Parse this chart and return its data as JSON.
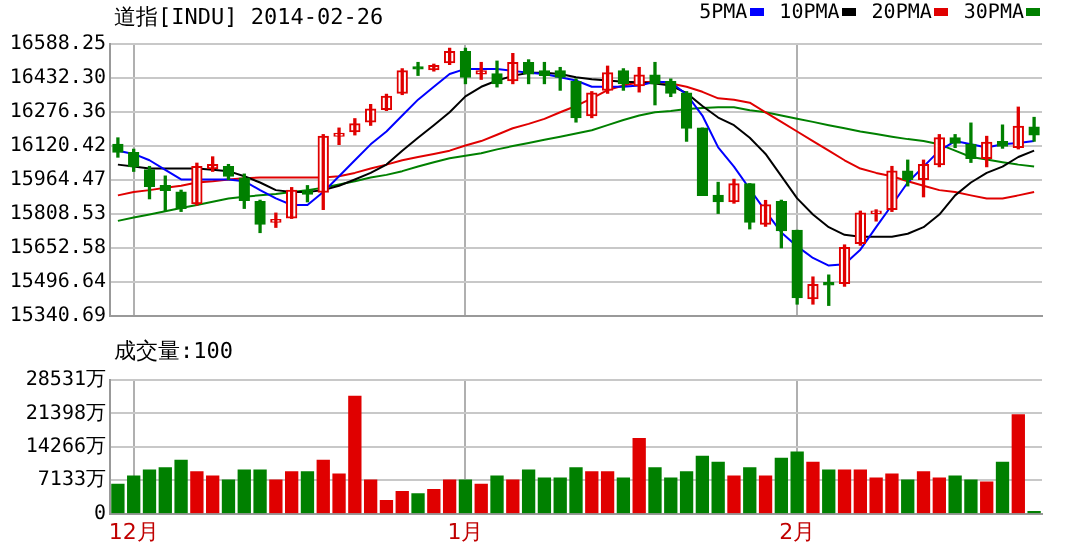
{
  "chart_data": [
    {
      "type": "candlestick",
      "title": "道指[INDU] 2014-02-26",
      "categories": [
        null,
        null,
        null,
        null,
        null,
        null,
        null,
        null,
        null,
        null,
        null,
        null,
        null,
        null,
        null,
        null,
        null,
        null,
        null,
        null,
        null,
        null,
        null,
        null,
        null,
        null,
        null,
        null,
        null,
        null,
        null,
        null,
        null,
        null,
        null,
        null,
        null,
        null,
        null,
        null,
        null,
        null,
        null,
        null,
        null,
        null,
        null,
        null,
        null,
        null,
        null,
        null,
        null,
        null,
        null,
        null,
        null,
        null,
        null
      ],
      "ohlc": [
        [
          16128,
          16157,
          16070,
          16093
        ],
        [
          16090,
          16105,
          16005,
          16026
        ],
        [
          16011,
          16026,
          15879,
          15935
        ],
        [
          15938,
          15982,
          15821,
          15917
        ],
        [
          15909,
          15917,
          15821,
          15835
        ],
        [
          15856,
          16041,
          15850,
          16026
        ],
        [
          16017,
          16070,
          16005,
          16035
        ],
        [
          16026,
          16035,
          15967,
          15982
        ],
        [
          15973,
          15991,
          15835,
          15871
        ],
        [
          15865,
          15871,
          15724,
          15762
        ],
        [
          15771,
          15812,
          15748,
          15783
        ],
        [
          15791,
          15929,
          15789,
          15917
        ],
        [
          15917,
          15938,
          15865,
          15900
        ],
        [
          15909,
          16172,
          15830,
          16164
        ],
        [
          16166,
          16202,
          16128,
          16178
        ],
        [
          16187,
          16245,
          16172,
          16222
        ],
        [
          16231,
          16310,
          16216,
          16289
        ],
        [
          16289,
          16357,
          16284,
          16348
        ],
        [
          16363,
          16474,
          16357,
          16465
        ],
        [
          16480,
          16503,
          16445,
          16474
        ],
        [
          16471,
          16495,
          16465,
          16489
        ],
        [
          16503,
          16568,
          16495,
          16553
        ],
        [
          16553,
          16568,
          16407,
          16436
        ],
        [
          16451,
          16503,
          16427,
          16465
        ],
        [
          16451,
          16509,
          16392,
          16407
        ],
        [
          16421,
          16544,
          16407,
          16503
        ],
        [
          16503,
          16515,
          16407,
          16451
        ],
        [
          16465,
          16503,
          16407,
          16445
        ],
        [
          16465,
          16480,
          16377,
          16436
        ],
        [
          16415,
          16427,
          16231,
          16251
        ],
        [
          16260,
          16369,
          16251,
          16363
        ],
        [
          16377,
          16486,
          16363,
          16456
        ],
        [
          16465,
          16474,
          16377,
          16407
        ],
        [
          16398,
          16480,
          16369,
          16445
        ],
        [
          16445,
          16503,
          16310,
          16407
        ],
        [
          16415,
          16427,
          16348,
          16363
        ],
        [
          16363,
          16369,
          16143,
          16202
        ],
        [
          16202,
          16202,
          15894,
          15894
        ],
        [
          15894,
          15953,
          15812,
          15865
        ],
        [
          15865,
          15967,
          15859,
          15947
        ],
        [
          15947,
          15947,
          15741,
          15771
        ],
        [
          15762,
          15870,
          15753,
          15850
        ],
        [
          15865,
          15871,
          15654,
          15733
        ],
        [
          15733,
          15733,
          15396,
          15425
        ],
        [
          15420,
          15519,
          15396,
          15484
        ],
        [
          15490,
          15528,
          15390,
          15484
        ],
        [
          15490,
          15666,
          15478,
          15654
        ],
        [
          15674,
          15821,
          15666,
          15812
        ],
        [
          15812,
          15827,
          15777,
          15821
        ],
        [
          15830,
          16026,
          15821,
          16005
        ],
        [
          16005,
          16055,
          15938,
          15967
        ],
        [
          15967,
          16055,
          15888,
          16035
        ],
        [
          16035,
          16172,
          16026,
          16158
        ],
        [
          16158,
          16172,
          16114,
          16134
        ],
        [
          16128,
          16225,
          16046,
          16064
        ],
        [
          16064,
          16164,
          16026,
          16137
        ],
        [
          16140,
          16216,
          16111,
          16120
        ],
        [
          16114,
          16298,
          16108,
          16210
        ],
        [
          16207,
          16251,
          16143,
          16172
        ]
      ],
      "colors": [
        "#008000",
        "#008000",
        "#008000",
        "#008000",
        "#008000",
        "#e00000",
        "#e00000",
        "#008000",
        "#008000",
        "#008000",
        "#e00000",
        "#e00000",
        "#008000",
        "#e00000",
        "#e00000",
        "#e00000",
        "#e00000",
        "#e00000",
        "#e00000",
        "#008000",
        "#e00000",
        "#e00000",
        "#008000",
        "#e00000",
        "#008000",
        "#e00000",
        "#008000",
        "#008000",
        "#008000",
        "#008000",
        "#e00000",
        "#e00000",
        "#008000",
        "#e00000",
        "#008000",
        "#008000",
        "#008000",
        "#008000",
        "#008000",
        "#e00000",
        "#008000",
        "#e00000",
        "#008000",
        "#008000",
        "#e00000",
        "#008000",
        "#e00000",
        "#e00000",
        "#e00000",
        "#e00000",
        "#008000",
        "#e00000",
        "#e00000",
        "#008000",
        "#008000",
        "#e00000",
        "#008000",
        "#e00000",
        "#008000"
      ],
      "series": [
        {
          "name": "5PMA",
          "type": "line",
          "color": "#0000ff",
          "values": [
            16099,
            16084,
            16055,
            16011,
            15967,
            15967,
            15967,
            15967,
            15959,
            15918,
            15880,
            15850,
            15850,
            15909,
            15982,
            16055,
            16128,
            16187,
            16260,
            16333,
            16392,
            16451,
            16474,
            16474,
            16474,
            16465,
            16456,
            16451,
            16436,
            16421,
            16392,
            16392,
            16392,
            16398,
            16415,
            16413,
            16357,
            16260,
            16114,
            16026,
            15923,
            15821,
            15724,
            15660,
            15607,
            15572,
            15578,
            15645,
            15748,
            15850,
            15953,
            16026,
            16099,
            16143,
            16128,
            16114,
            16128,
            16134,
            16143
          ]
        },
        {
          "name": "10PMA",
          "type": "line",
          "color": "#000000",
          "values": [
            16035,
            16026,
            16017,
            16017,
            16017,
            16017,
            16011,
            16005,
            15982,
            15953,
            15918,
            15909,
            15909,
            15918,
            15938,
            15967,
            15997,
            16035,
            16099,
            16158,
            16216,
            16275,
            16348,
            16392,
            16421,
            16442,
            16456,
            16456,
            16451,
            16436,
            16427,
            16421,
            16415,
            16413,
            16407,
            16398,
            16363,
            16304,
            16251,
            16216,
            16158,
            16084,
            15982,
            15880,
            15806,
            15748,
            15713,
            15704,
            15704,
            15704,
            15718,
            15748,
            15806,
            15894,
            15953,
            15997,
            16026,
            16070,
            16099
          ]
        },
        {
          "name": "20PMA",
          "type": "line",
          "color": "#e00000",
          "values": [
            15894,
            15909,
            15918,
            15929,
            15938,
            15953,
            15959,
            15967,
            15973,
            15976,
            15976,
            15976,
            15976,
            15976,
            15982,
            15997,
            16017,
            16035,
            16055,
            16070,
            16084,
            16099,
            16123,
            16143,
            16172,
            16202,
            16222,
            16245,
            16275,
            16304,
            16339,
            16377,
            16398,
            16413,
            16415,
            16407,
            16392,
            16369,
            16339,
            16333,
            16319,
            16275,
            16231,
            16187,
            16143,
            16099,
            16055,
            16017,
            15997,
            15982,
            15959,
            15938,
            15918,
            15909,
            15894,
            15880,
            15880,
            15894,
            15909
          ]
        },
        {
          "name": "30PMA",
          "type": "line",
          "color": "#008000",
          "values": [
            15777,
            15792,
            15806,
            15821,
            15836,
            15850,
            15865,
            15880,
            15888,
            15894,
            15900,
            15909,
            15918,
            15929,
            15944,
            15959,
            15976,
            15988,
            16005,
            16026,
            16046,
            16064,
            16076,
            16087,
            16105,
            16120,
            16134,
            16149,
            16163,
            16178,
            16193,
            16216,
            16240,
            16260,
            16275,
            16281,
            16290,
            16295,
            16298,
            16298,
            16284,
            16275,
            16260,
            16245,
            16231,
            16216,
            16202,
            16187,
            16175,
            16163,
            16152,
            16143,
            16128,
            16099,
            16070,
            16058,
            16046,
            16035,
            16026
          ]
        }
      ],
      "ylim": [
        15340.69,
        16588.25
      ],
      "yticks": [
        16588.25,
        {
          "value": 16432.3,
          "label": "16432.30"
        },
        16276.36,
        16120.42,
        15964.47,
        15808.53,
        15652.58,
        15496.64,
        15340.69
      ],
      "grid": true,
      "legend": "top right",
      "tick_labels": "y"
    },
    {
      "type": "bar",
      "title": "成交量:100",
      "categories": [
        null,
        "12月",
        null,
        null,
        null,
        null,
        null,
        null,
        null,
        null,
        null,
        null,
        null,
        null,
        null,
        null,
        null,
        null,
        null,
        null,
        null,
        null,
        "1月",
        null,
        null,
        null,
        null,
        null,
        null,
        null,
        null,
        null,
        null,
        null,
        null,
        null,
        null,
        null,
        null,
        null,
        null,
        null,
        null,
        "2月",
        null,
        null,
        null,
        null,
        null,
        null,
        null,
        null,
        null,
        null,
        null,
        null,
        null,
        null,
        null
      ],
      "values": [
        6260,
        8000,
        9300,
        9750,
        11350,
        8880,
        8000,
        7130,
        9300,
        9300,
        7130,
        8880,
        8880,
        11350,
        8440,
        25040,
        7130,
        2770,
        4660,
        4220,
        5100,
        7130,
        7130,
        6260,
        8000,
        7130,
        9300,
        7570,
        7570,
        9750,
        8880,
        8880,
        7570,
        16010,
        9750,
        7570,
        8880,
        12230,
        10920,
        8000,
        9750,
        8000,
        11790,
        13100,
        10920,
        9300,
        9300,
        9300,
        7570,
        8440,
        7130,
        8880,
        7570,
        8000,
        7130,
        6700,
        10920,
        21100,
        440
      ],
      "colors": [
        "#008000",
        "#008000",
        "#008000",
        "#008000",
        "#008000",
        "#e00000",
        "#e00000",
        "#008000",
        "#008000",
        "#008000",
        "#e00000",
        "#e00000",
        "#008000",
        "#e00000",
        "#e00000",
        "#e00000",
        "#e00000",
        "#e00000",
        "#e00000",
        "#008000",
        "#e00000",
        "#e00000",
        "#008000",
        "#e00000",
        "#008000",
        "#e00000",
        "#008000",
        "#008000",
        "#008000",
        "#008000",
        "#e00000",
        "#e00000",
        "#008000",
        "#e00000",
        "#008000",
        "#008000",
        "#008000",
        "#008000",
        "#008000",
        "#e00000",
        "#008000",
        "#e00000",
        "#008000",
        "#008000",
        "#e00000",
        "#008000",
        "#e00000",
        "#e00000",
        "#e00000",
        "#e00000",
        "#008000",
        "#e00000",
        "#e00000",
        "#008000",
        "#008000",
        "#e00000",
        "#008000",
        "#e00000",
        "#008000"
      ],
      "ylim": [
        0,
        28531
      ],
      "yticks": [
        0,
        {
          "value": 7133,
          "label": "7133万"
        },
        {
          "value": 14266,
          "label": "14266万"
        },
        {
          "value": 21398,
          "label": "21398万"
        },
        {
          "value": 28531,
          "label": "28531万"
        }
      ],
      "grid": true
    }
  ]
}
